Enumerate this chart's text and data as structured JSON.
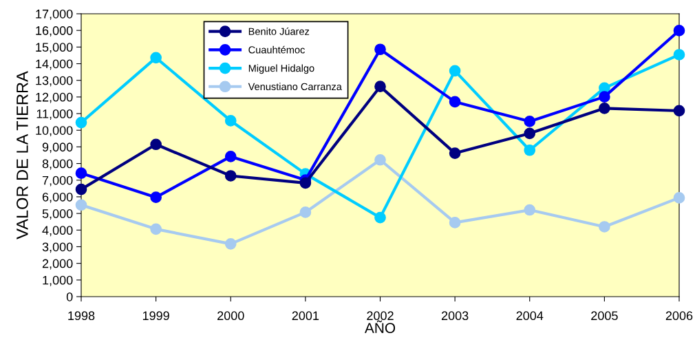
{
  "chart_data": {
    "type": "line",
    "xlabel": "AÑO",
    "ylabel": "VALOR DE LA TIERRA",
    "x": [
      1998,
      1999,
      2000,
      2001,
      2002,
      2003,
      2004,
      2005,
      2006
    ],
    "xlim": [
      1998,
      2006
    ],
    "xticks": [
      1998,
      1999,
      2000,
      2001,
      2002,
      2003,
      2004,
      2005,
      2006
    ],
    "ylim": [
      0,
      17000
    ],
    "yticks": [
      {
        "value": 0,
        "label": "0"
      },
      {
        "value": 1000,
        "label": "1,000"
      },
      {
        "value": 2000,
        "label": "2,000"
      },
      {
        "value": 3000,
        "label": "3,000"
      },
      {
        "value": 4000,
        "label": "4,000"
      },
      {
        "value": 5000,
        "label": "5,000"
      },
      {
        "value": 6000,
        "label": "6,000"
      },
      {
        "value": 7000,
        "label": "7,000"
      },
      {
        "value": 8000,
        "label": "8,000"
      },
      {
        "value": 9000,
        "label": "9,000"
      },
      {
        "value": 10000,
        "label": "10,000"
      },
      {
        "value": 11000,
        "label": "11,000"
      },
      {
        "value": 12000,
        "label": "12,000"
      },
      {
        "value": 13000,
        "label": "13,000"
      },
      {
        "value": 14000,
        "label": "14,000"
      },
      {
        "value": 15000,
        "label": "15,000"
      },
      {
        "value": 16000,
        "label": "16,000"
      },
      {
        "value": 17000,
        "label": "17,000"
      }
    ],
    "grid": false,
    "legend": "top",
    "marker": "circle",
    "line_style": "solid",
    "series": [
      {
        "name": "Benito Júarez",
        "color": "#000080",
        "values": [
          6450,
          9150,
          7260,
          6830,
          12630,
          8620,
          9810,
          11320,
          11170
        ]
      },
      {
        "name": "Cuauhtémoc",
        "color": "#0000ff",
        "values": [
          7420,
          5970,
          8420,
          7010,
          14860,
          11710,
          10530,
          12010,
          15990
        ]
      },
      {
        "name": "Miguel Hidalgo",
        "color": "#00ccff",
        "values": [
          10460,
          14360,
          10570,
          7380,
          4750,
          13570,
          8800,
          12540,
          14540
        ]
      },
      {
        "name": "Venustiano Carranza",
        "color": "#a6caf0",
        "values": [
          5510,
          4060,
          3170,
          5070,
          8220,
          4450,
          5210,
          4200,
          5940
        ]
      }
    ]
  }
}
